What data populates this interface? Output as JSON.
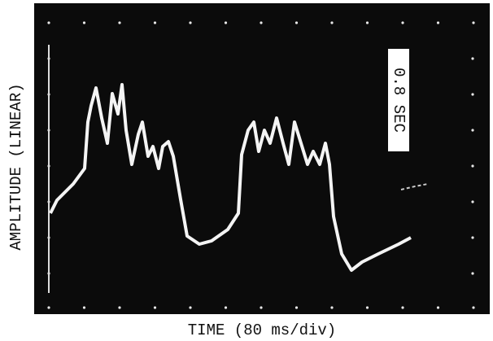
{
  "screen": {
    "annotation": "0.8 SEC"
  },
  "axes": {
    "y_label": "AMPLITUDE (LINEAR)",
    "x_label": "TIME (80 ms/div)"
  }
}
